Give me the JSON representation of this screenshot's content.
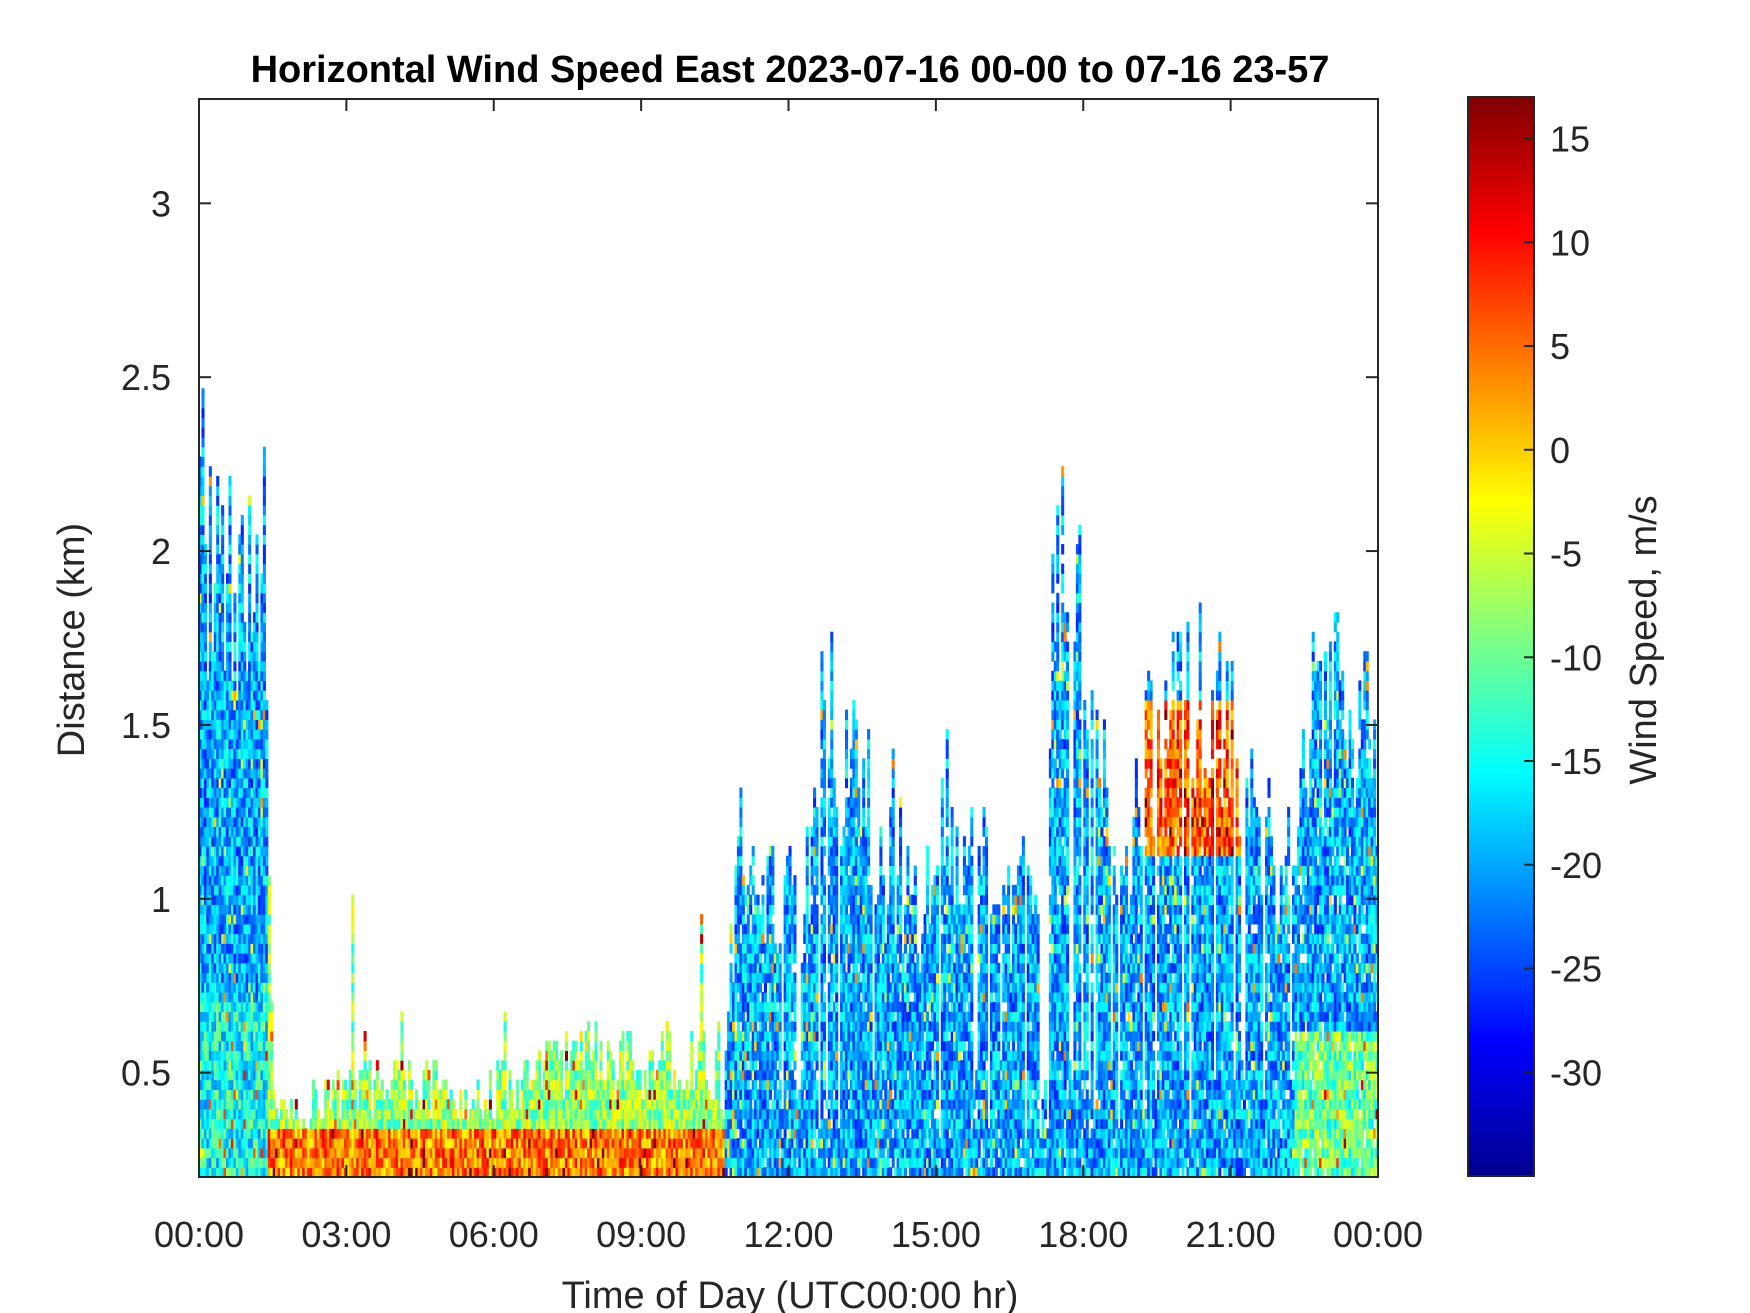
{
  "chart_data": {
    "type": "heatmap",
    "title": "Horizontal Wind Speed East 2023-07-16 00-00 to 07-16 23-57",
    "xlabel": "Time of Day (UTC00:00 hr)",
    "ylabel": "Distance (km)",
    "colorbar_label": "Wind Speed, m/s",
    "x_tick_labels": [
      "00:00",
      "03:00",
      "06:00",
      "09:00",
      "12:00",
      "15:00",
      "18:00",
      "21:00",
      "00:00"
    ],
    "x_range_hours": [
      0,
      24
    ],
    "y_ticks": [
      0.5,
      1,
      1.5,
      2,
      2.5,
      3
    ],
    "y_tick_labels": [
      "0.5",
      "1",
      "1.5",
      "2",
      "2.5",
      "3"
    ],
    "ylim": [
      0.2,
      3.3
    ],
    "colorbar_ticks": [
      15,
      10,
      5,
      0,
      -5,
      -10,
      -15,
      -20,
      -25,
      -30
    ],
    "colorbar_tick_labels": [
      "15",
      "10",
      "5",
      "0",
      "-5",
      "-10",
      "-15",
      "-20",
      "-25",
      "-30"
    ],
    "clim": [
      -35,
      17
    ],
    "colormap": "jet",
    "grid": false,
    "data_summary": [
      {
        "time_hours": [
          0.0,
          1.4
        ],
        "height_km": [
          0.2,
          2.1
        ],
        "typical_speed_ms": -20
      },
      {
        "time_hours": [
          1.4,
          10.7
        ],
        "height_km": [
          0.2,
          0.45
        ],
        "typical_speed_ms": 5
      },
      {
        "time_hours": [
          10.7,
          17.5
        ],
        "height_km": [
          0.2,
          1.8
        ],
        "typical_speed_ms": -20
      },
      {
        "time_hours": [
          17.5,
          18.8
        ],
        "height_km": [
          0.2,
          2.2
        ],
        "typical_speed_ms": -22
      },
      {
        "time_hours": [
          19.2,
          21.2
        ],
        "height_km": [
          1.1,
          1.55
        ],
        "typical_speed_ms": 8
      },
      {
        "time_hours": [
          18.8,
          24.0
        ],
        "height_km": [
          0.2,
          1.7
        ],
        "typical_speed_ms": -18
      }
    ]
  }
}
